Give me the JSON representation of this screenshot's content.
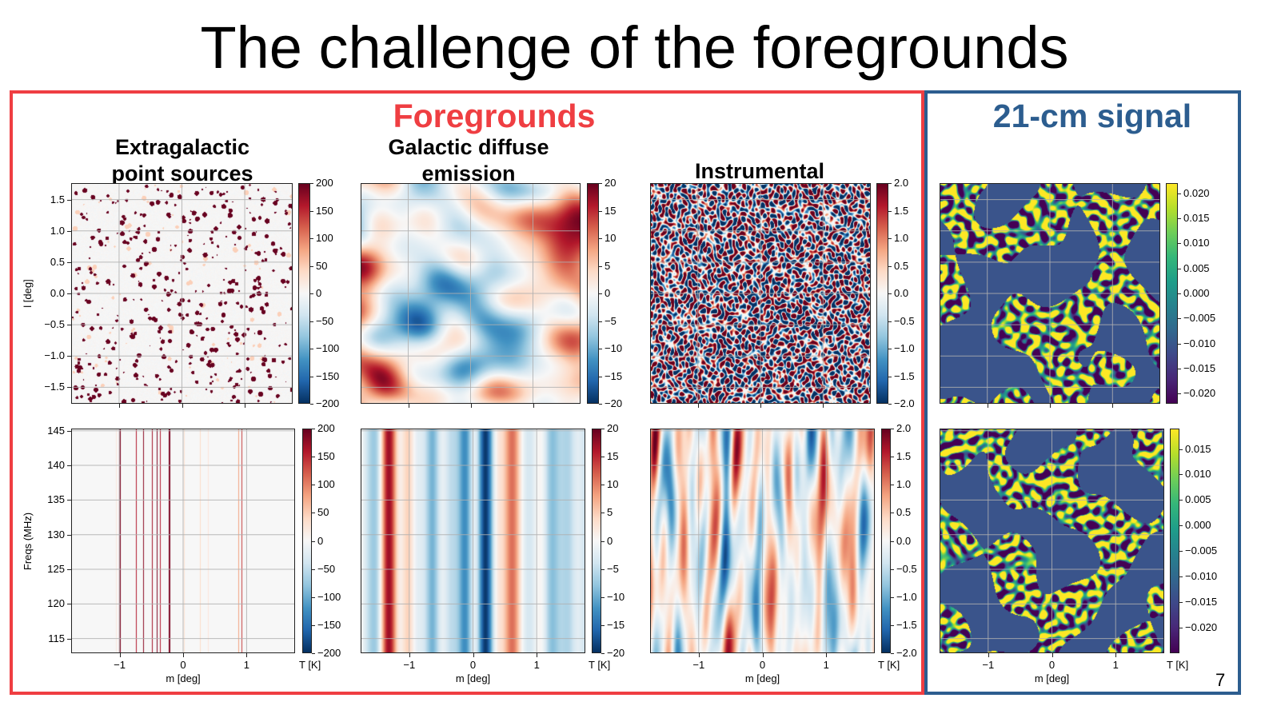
{
  "slide": {
    "title": "The challenge of the foregrounds",
    "page_number": "7"
  },
  "groups": {
    "foregrounds": {
      "title": "Foregrounds",
      "color": "#ef3e42"
    },
    "signal": {
      "title": "21-cm signal",
      "color": "#2c5d8f"
    }
  },
  "column_titles": {
    "point_sources": "Extragalactic\npoint sources",
    "galactic": "Galactic diffuse\nemission",
    "instrumental": "Instrumental",
    "signal": ""
  },
  "axes": {
    "top_ylabel": "l [deg]",
    "bottom_ylabel": "Freqs (MHz)",
    "xlabel": "m [deg]",
    "cbar_unit": "T [K]",
    "top_yticks": [
      "1.5",
      "1.0",
      "0.5",
      "0.0",
      "−0.5",
      "−1.0",
      "−1.5"
    ],
    "top_ytick_values": [
      1.5,
      1.0,
      0.5,
      0.0,
      -0.5,
      -1.0,
      -1.5
    ],
    "top_yrange": [
      -1.75,
      1.75
    ],
    "bottom_yticks": [
      "145",
      "140",
      "135",
      "130",
      "125",
      "120",
      "115"
    ],
    "bottom_ytick_values": [
      145,
      140,
      135,
      130,
      125,
      120,
      115
    ],
    "bottom_yrange": [
      113,
      145.2
    ],
    "xticks": [
      "−1",
      "0",
      "1"
    ],
    "xtick_values": [
      -1,
      0,
      1
    ],
    "xrange": [
      -1.75,
      1.75
    ]
  },
  "colormaps": {
    "diverging": [
      "#053061",
      "#2166ac",
      "#4393c3",
      "#92c5de",
      "#d1e5f0",
      "#f7f7f7",
      "#fddbc7",
      "#f4a582",
      "#d6604d",
      "#b2182b",
      "#67001f"
    ],
    "viridis": [
      "#440154",
      "#482878",
      "#3e4989",
      "#31688e",
      "#26828e",
      "#1f9e89",
      "#35b779",
      "#6ece58",
      "#b5de2b",
      "#fde725"
    ]
  },
  "chart_data": [
    {
      "type": "heatmap",
      "name": "point_sources_sky",
      "colormap": "diverging",
      "cbar_ticks": [
        "200",
        "150",
        "100",
        "50",
        "0",
        "−50",
        "−100",
        "−150",
        "−200"
      ],
      "cbar_values": [
        200,
        150,
        100,
        50,
        0,
        -50,
        -100,
        -150,
        -200
      ],
      "cbar_range": [
        -200,
        200
      ]
    },
    {
      "type": "heatmap",
      "name": "galactic_sky",
      "colormap": "diverging",
      "cbar_ticks": [
        "20",
        "15",
        "10",
        "5",
        "0",
        "−5",
        "−10",
        "−15",
        "−20"
      ],
      "cbar_values": [
        20,
        15,
        10,
        5,
        0,
        -5,
        -10,
        -15,
        -20
      ],
      "cbar_range": [
        -20,
        20
      ]
    },
    {
      "type": "heatmap",
      "name": "instrumental_sky",
      "colormap": "diverging",
      "cbar_ticks": [
        "2.0",
        "1.5",
        "1.0",
        "0.5",
        "0.0",
        "−0.5",
        "−1.0",
        "−1.5",
        "−2.0"
      ],
      "cbar_values": [
        2.0,
        1.5,
        1.0,
        0.5,
        0.0,
        -0.5,
        -1.0,
        -1.5,
        -2.0
      ],
      "cbar_range": [
        -2,
        2
      ]
    },
    {
      "type": "heatmap",
      "name": "signal_sky",
      "colormap": "viridis",
      "cbar_ticks": [
        "0.020",
        "0.015",
        "0.010",
        "0.005",
        "0.000",
        "−0.005",
        "−0.010",
        "−0.015",
        "−0.020"
      ],
      "cbar_values": [
        0.02,
        0.015,
        0.01,
        0.005,
        0.0,
        -0.005,
        -0.01,
        -0.015,
        -0.02
      ],
      "cbar_range": [
        -0.022,
        0.022
      ]
    },
    {
      "type": "heatmap",
      "name": "point_sources_freq",
      "colormap": "diverging",
      "cbar_ticks": [
        "200",
        "150",
        "100",
        "50",
        "0",
        "−50",
        "−100",
        "−150",
        "−200"
      ],
      "cbar_values": [
        200,
        150,
        100,
        50,
        0,
        -50,
        -100,
        -150,
        -200
      ],
      "cbar_range": [
        -200,
        200
      ]
    },
    {
      "type": "heatmap",
      "name": "galactic_freq",
      "colormap": "diverging",
      "cbar_ticks": [
        "20",
        "15",
        "10",
        "5",
        "0",
        "−5",
        "−10",
        "−15",
        "−20"
      ],
      "cbar_values": [
        20,
        15,
        10,
        5,
        0,
        -5,
        -10,
        -15,
        -20
      ],
      "cbar_range": [
        -20,
        20
      ]
    },
    {
      "type": "heatmap",
      "name": "instrumental_freq",
      "colormap": "diverging",
      "cbar_ticks": [
        "2.0",
        "1.5",
        "1.0",
        "0.5",
        "0.0",
        "−0.5",
        "−1.0",
        "−1.5",
        "−2.0"
      ],
      "cbar_values": [
        2.0,
        1.5,
        1.0,
        0.5,
        0.0,
        -0.5,
        -1.0,
        -1.5,
        -2.0
      ],
      "cbar_range": [
        -2,
        2
      ]
    },
    {
      "type": "heatmap",
      "name": "signal_freq",
      "colormap": "viridis",
      "cbar_ticks": [
        "0.015",
        "0.010",
        "0.005",
        "0.000",
        "−0.005",
        "−0.010",
        "−0.015",
        "−0.020"
      ],
      "cbar_values": [
        0.015,
        0.01,
        0.005,
        0.0,
        -0.005,
        -0.01,
        -0.015,
        -0.02
      ],
      "cbar_range": [
        -0.025,
        0.019
      ]
    }
  ]
}
